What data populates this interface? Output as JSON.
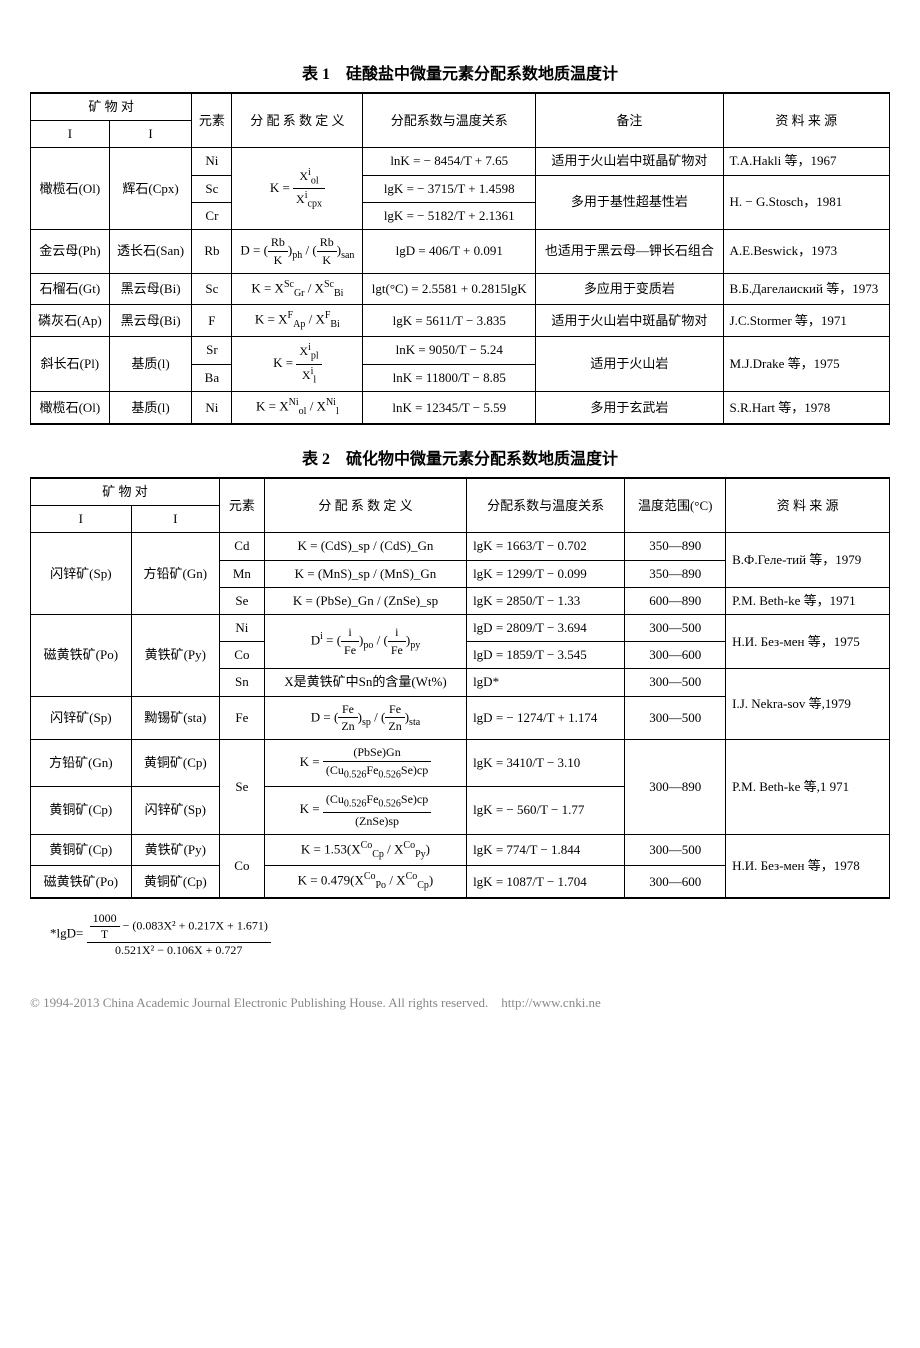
{
  "table1": {
    "title": "表 1　硅酸盐中微量元素分配系数地质温度计",
    "headers": {
      "pair": "矿 物 对",
      "col_i": "I",
      "col_ii": "I",
      "element": "元素",
      "def": "分 配 系 数 定 义",
      "relation": "分配系数与温度关系",
      "note": "备注",
      "source": "资 料 来 源"
    },
    "rows": [
      {
        "m1": "橄榄石(Ol)",
        "m2": "辉石(Cpx)",
        "el": "Ni",
        "def": "K = X^i_ol / X^i_cpx",
        "rel": "lnK = − 8454/T + 7.65",
        "note": "适用于火山岩中斑晶矿物对",
        "src": "T.A.Hakli 等，1967"
      },
      {
        "el": "Sc",
        "rel": "lgK = − 3715/T + 1.4598",
        "note": "多用于基性超基性岩",
        "src": "H. − G.Stosch，1981"
      },
      {
        "el": "Cr",
        "rel": "lgK = − 5182/T + 2.1361"
      },
      {
        "m1": "金云母(Ph)",
        "m2": "透长石(San)",
        "el": "Rb",
        "def": "D = (Rb/K)_ph / (Rb/K)_san",
        "rel": "lgD = 406/T + 0.091",
        "note": "也适用于黑云母—钾长石组合",
        "src": "A.E.Beswick，1973"
      },
      {
        "m1": "石榴石(Gt)",
        "m2": "黑云母(Bi)",
        "el": "Sc",
        "def": "K = X^Sc_Gr / X^Sc_Bi",
        "rel": "lgt(°C) = 2.5581 + 0.2815lgK",
        "note": "多应用于变质岩",
        "src": "В.Б.Дагелаиский 等，1973"
      },
      {
        "m1": "磷灰石(Ap)",
        "m2": "黑云母(Bi)",
        "el": "F",
        "def": "K = X^F_Ap / X^F_Bi",
        "rel": "lgK = 5611/T − 3.835",
        "note": "适用于火山岩中斑晶矿物对",
        "src": "J.C.Stormer 等，1971"
      },
      {
        "m1": "斜长石(Pl)",
        "m2": "基质(l)",
        "el": "Sr",
        "def": "K = X^i_pl / X^i_l",
        "rel": "lnK = 9050/T − 5.24",
        "note": "适用于火山岩",
        "src": "M.J.Drake 等，1975"
      },
      {
        "el": "Ba",
        "rel": "lnK = 11800/T − 8.85"
      },
      {
        "m1": "橄榄石(Ol)",
        "m2": "基质(l)",
        "el": "Ni",
        "def": "K = X^Ni_ol / X^Ni_l",
        "rel": "lnK = 12345/T − 5.59",
        "note": "多用于玄武岩",
        "src": "S.R.Hart 等，1978"
      }
    ]
  },
  "table2": {
    "title": "表 2　硫化物中微量元素分配系数地质温度计",
    "headers": {
      "pair": "矿 物 对",
      "col_i": "I",
      "col_ii": "I",
      "element": "元素",
      "def": "分 配 系 数 定 义",
      "relation": "分配系数与温度关系",
      "range": "温度范围(°C)",
      "source": "资 料 来 源"
    },
    "rows": [
      {
        "m1": "闪锌矿(Sp)",
        "m2": "方铅矿(Gn)",
        "el": "Cd",
        "def": "K = (CdS)_sp / (CdS)_Gn",
        "rel": "lgK = 1663/T − 0.702",
        "range": "350—890",
        "src": "В.Ф.Геле-тий 等，1979"
      },
      {
        "el": "Mn",
        "def": "K = (MnS)_sp / (MnS)_Gn",
        "rel": "lgK = 1299/T − 0.099",
        "range": "350—890"
      },
      {
        "el": "Se",
        "def": "K = (PbSe)_Gn / (ZnSe)_sp",
        "rel": "lgK = 2850/T − 1.33",
        "range": "600—890",
        "src": "P.M. Beth-ke 等，1971"
      },
      {
        "m1": "磁黄铁矿(Po)",
        "m2": "黄铁矿(Py)",
        "el": "Ni",
        "def": "D^i = (i/Fe)_po / (i/Fe)_py",
        "rel": "lgD = 2809/T − 3.694",
        "range": "300—500",
        "src": "Н.И. Без-мен 等，1975"
      },
      {
        "el": "Co",
        "rel": "lgD = 1859/T − 3.545",
        "range": "300—600"
      },
      {
        "el": "Sn",
        "def": "X是黄铁矿中Sn的含量(Wt%)",
        "rel": "lgD*",
        "range": "300—500",
        "src": "I.J. Nekra-sov 等,1979"
      },
      {
        "m1": "闪锌矿(Sp)",
        "m2": "黝锡矿(sta)",
        "el": "Fe",
        "def": "D = (Fe/Zn)_sp / (Fe/Zn)_sta",
        "rel": "lgD = − 1274/T + 1.174",
        "range": "300—500"
      },
      {
        "m1": "方铅矿(Gn)",
        "m2": "黄铜矿(Cp)",
        "el": "Se",
        "def": "K = (PbSe)Gn / (Cu₀.₅₂₆Fe₀.₅₂₆Se)cp",
        "rel": "lgK = 3410/T − 3.10",
        "range": "300—890",
        "src": "P.M. Beth-ke 等,1 971"
      },
      {
        "m1": "黄铜矿(Cp)",
        "m2": "闪锌矿(Sp)",
        "def": "K = (Cu₀.₅₂₆Fe₀.₅₂₆Se)cp / (ZnSe)sp",
        "rel": "lgK = − 560/T − 1.77"
      },
      {
        "m1": "黄铜矿(Cp)",
        "m2": "黄铁矿(Py)",
        "el": "Co",
        "def": "K = 1.53(X^Co_Cp / X^Co_Py)",
        "rel": "lgK = 774/T − 1.844",
        "range": "300—500",
        "src": "Н.И. Без-мен 等，1978"
      },
      {
        "m1": "磁黄铁矿(Po)",
        "m2": "黄铜矿(Cp)",
        "def": "K = 0.479(X^Co_Po / X^Co_Cp)",
        "rel": "lgK = 1087/T − 1.704",
        "range": "300—600"
      }
    ],
    "footnote_label": "*lgD=",
    "footnote_num": "1000/T − (0.083X² + 0.217X + 1.671)",
    "footnote_den": "0.521X² − 0.106X + 0.727"
  },
  "copyright": "© 1994-2013 China Academic Journal Electronic Publishing House. All rights reserved.　http://www.cnki.ne"
}
